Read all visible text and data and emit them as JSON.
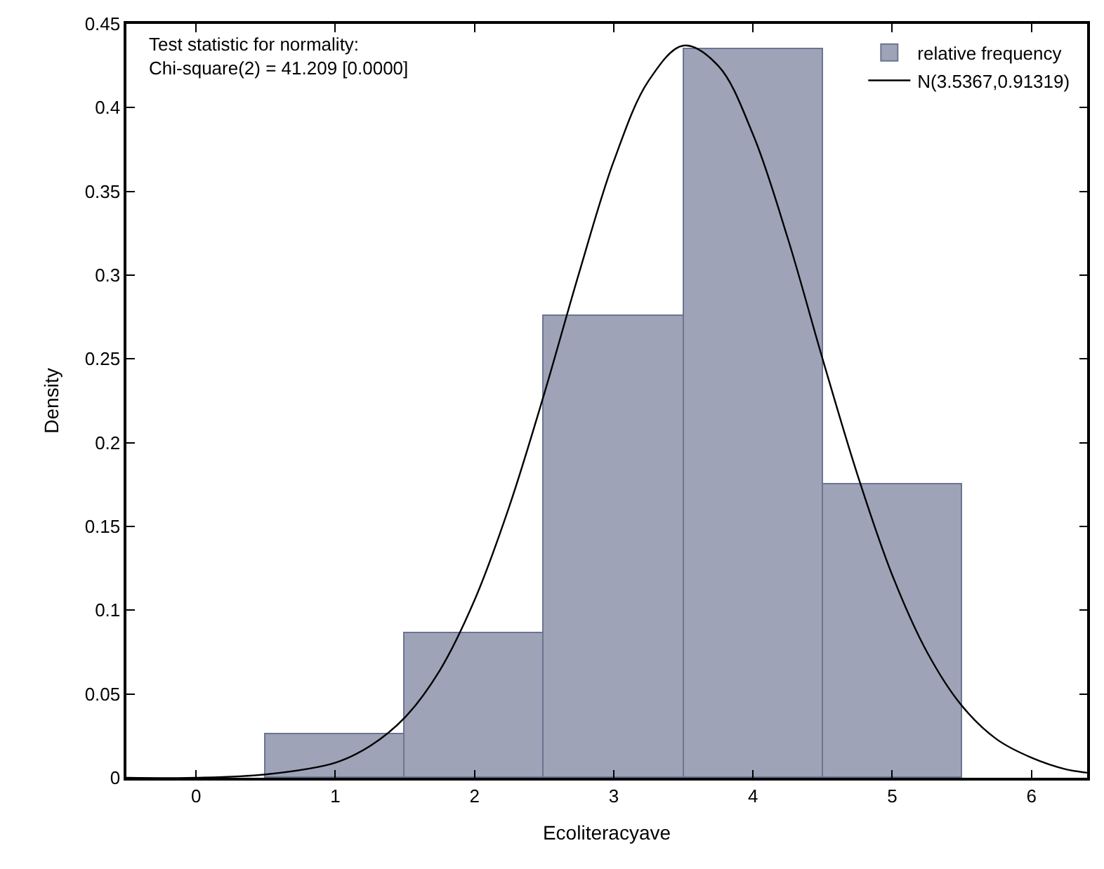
{
  "chart_data": {
    "type": "histogram",
    "xlabel": "Ecoliteracyave",
    "ylabel": "Density",
    "annotations": [
      "Test statistic for normality:\nChi-square(2) = 41.209 [0.0000]"
    ],
    "series": [
      {
        "name": "relative frequency",
        "color": "#9ea3b7",
        "bins": [
          0.5,
          1.5,
          2.5,
          3.5,
          4.5,
          5.5
        ],
        "values": [
          0.026,
          0.086,
          0.276,
          0.435,
          0.175
        ]
      },
      {
        "name": "N(3.5367,0.91319)",
        "type": "line",
        "color": "#000000",
        "x": [
          -0.5,
          0,
          0.5,
          1,
          1.25,
          1.5,
          1.75,
          2,
          2.25,
          2.5,
          2.75,
          3,
          3.25,
          3.5,
          3.75,
          4,
          4.25,
          4.5,
          4.75,
          5,
          5.25,
          5.5,
          5.75,
          6,
          6.25,
          6.4
        ],
        "values": [
          0.0,
          0.0,
          0.002,
          0.009,
          0.019,
          0.036,
          0.064,
          0.106,
          0.162,
          0.229,
          0.301,
          0.368,
          0.416,
          0.437,
          0.425,
          0.384,
          0.322,
          0.25,
          0.181,
          0.121,
          0.075,
          0.043,
          0.023,
          0.012,
          0.005,
          0.003
        ]
      }
    ],
    "xlim": [
      -0.5,
      6.4
    ],
    "xticks": [
      0,
      1,
      2,
      3,
      4,
      5,
      6
    ],
    "ylim": [
      0,
      0.45
    ],
    "yticks": [
      0,
      0.05,
      0.1,
      0.15,
      0.2,
      0.25,
      0.3,
      0.35,
      0.4,
      0.45
    ],
    "legend": "top right",
    "marker": "none",
    "line_style": "solid"
  }
}
